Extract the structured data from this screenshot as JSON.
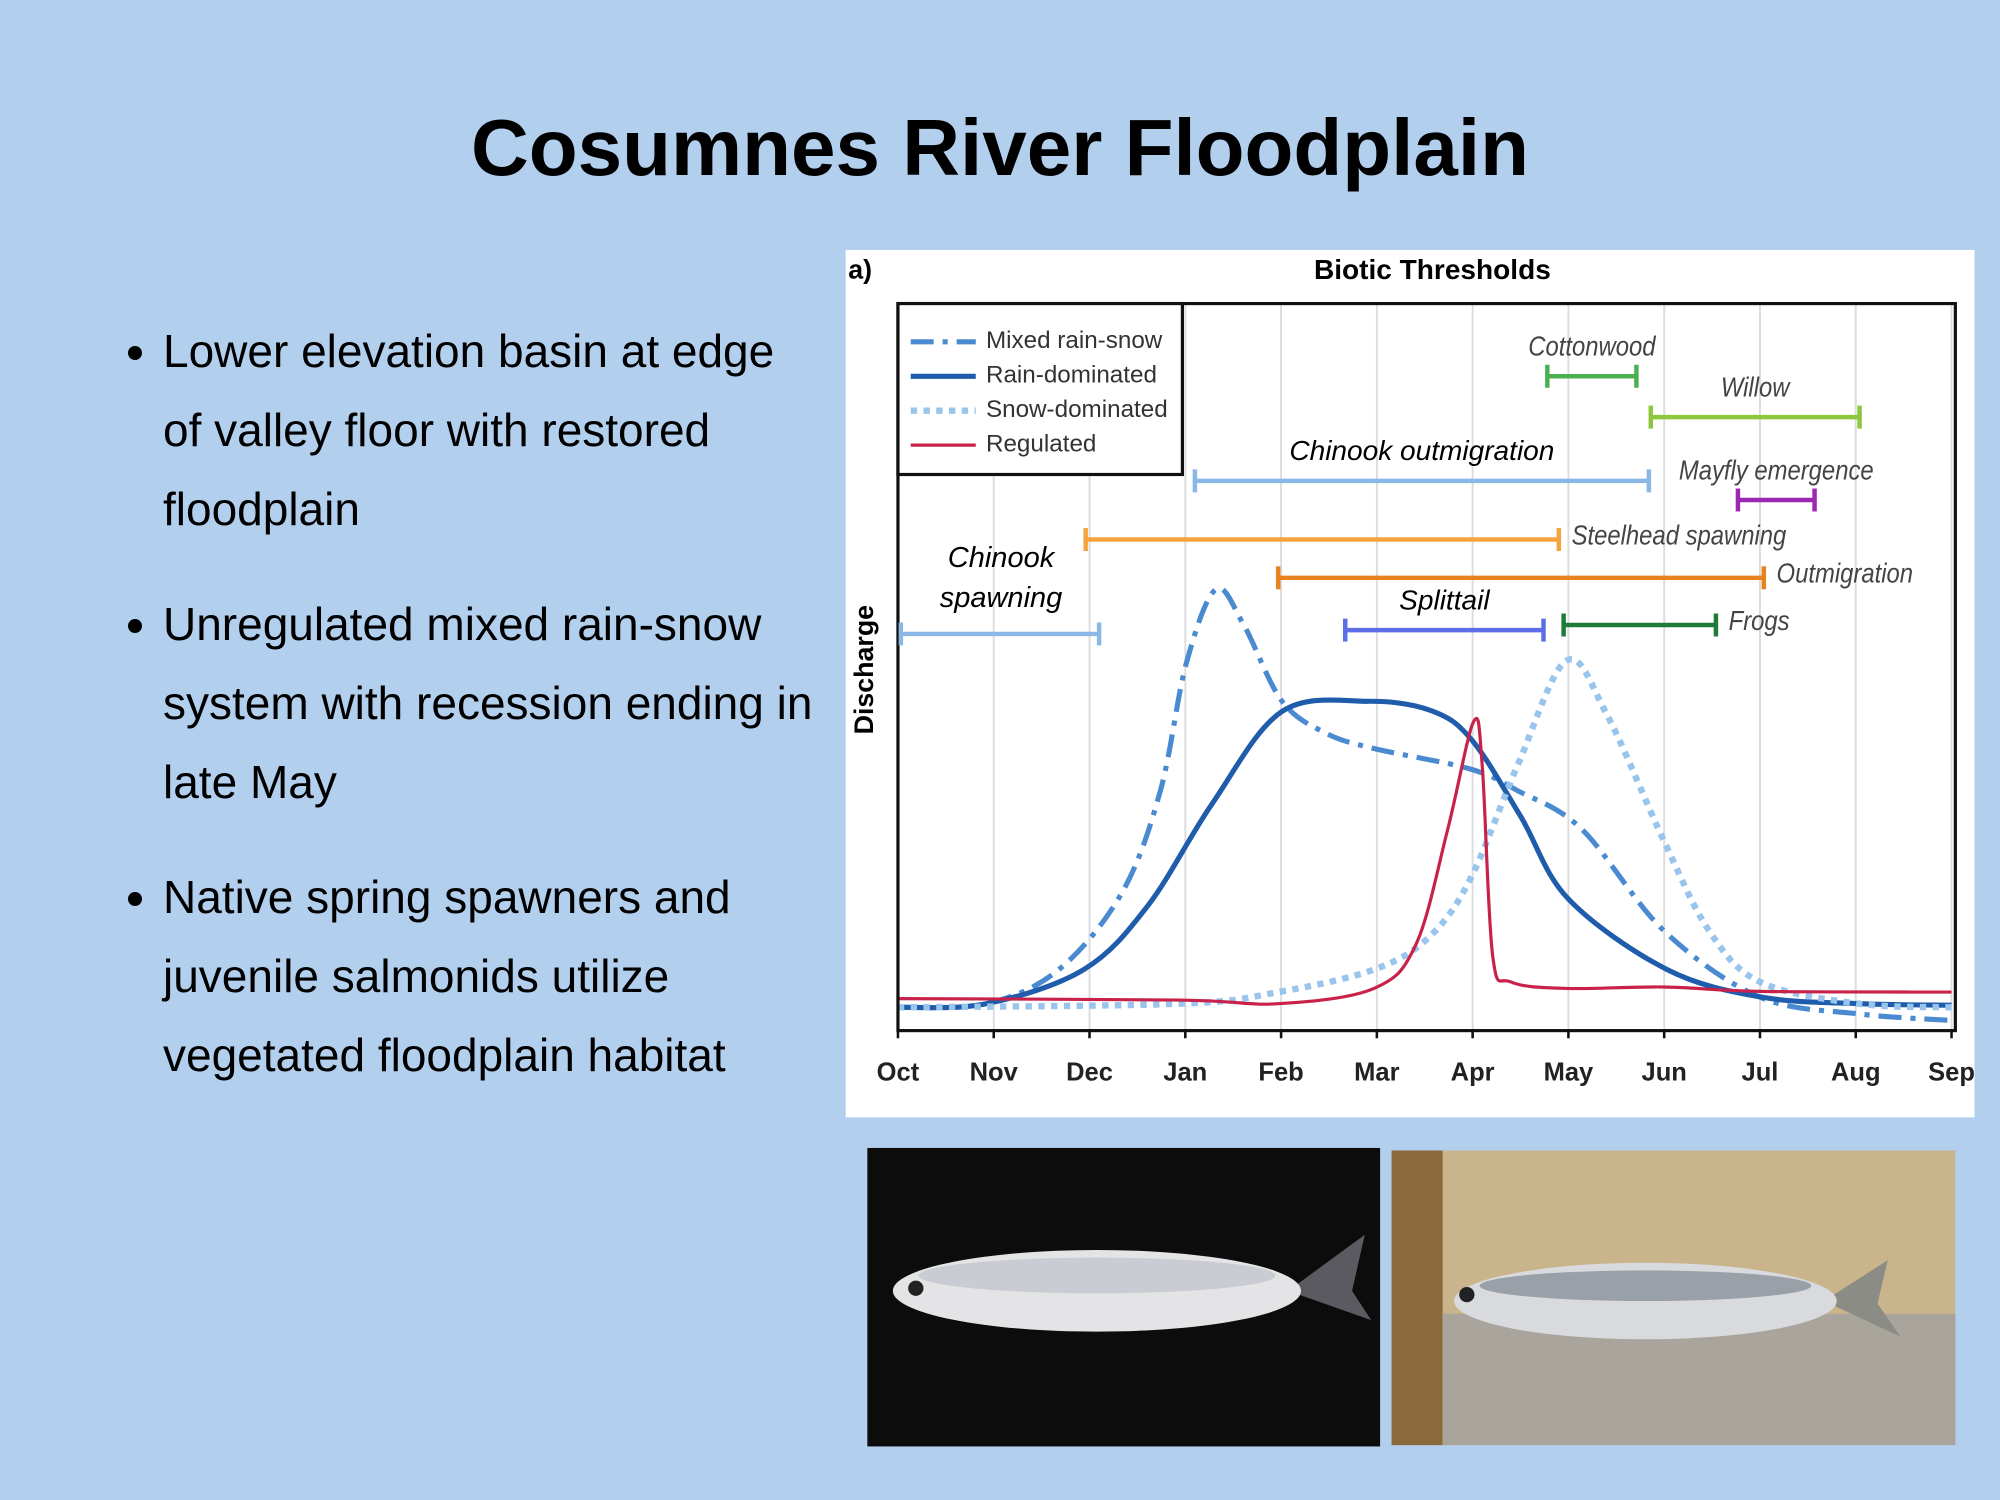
{
  "title": "Cosumnes River Floodplain",
  "bullets": [
    "Lower elevation basin at edge of valley floor with restored floodplain",
    "Unregulated mixed rain-snow system with recession ending in late May",
    "Native spring spawners and juvenile salmonids utilize vegetated floodplain habitat"
  ],
  "chart_data": {
    "type": "line",
    "panel_label": "a)",
    "title": "Biotic Thresholds",
    "y_label": "Discharge",
    "xlim": [
      0,
      11
    ],
    "xticks": [
      {
        "value": 0,
        "label": "Oct"
      },
      {
        "value": 1,
        "label": "Nov"
      },
      {
        "value": 2,
        "label": "Dec"
      },
      {
        "value": 3,
        "label": "Jan"
      },
      {
        "value": 4,
        "label": "Feb"
      },
      {
        "value": 5,
        "label": "Mar"
      },
      {
        "value": 6,
        "label": "Apr"
      },
      {
        "value": 7,
        "label": "May"
      },
      {
        "value": 8,
        "label": "Jun"
      },
      {
        "value": 9,
        "label": "Jul"
      },
      {
        "value": 10,
        "label": "Aug"
      },
      {
        "value": 11,
        "label": "Sep"
      }
    ],
    "ylim": [
      0,
      100
    ],
    "grid": true,
    "legend": "top-left",
    "series": [
      {
        "name": "Mixed rain-snow",
        "color": "#4a8ad0",
        "line_style": "dash-dot",
        "x": [
          0,
          0.92,
          1.68,
          2.34,
          2.74,
          3.01,
          3.32,
          3.61,
          4.01,
          4.47,
          4.97,
          5.97,
          6.47,
          7.14,
          8.0,
          9.0,
          10.03,
          11
        ],
        "values": [
          3.2,
          3.7,
          8.4,
          19.0,
          33.0,
          50.5,
          60.7,
          55.8,
          45.3,
          40.9,
          38.8,
          36.0,
          33.0,
          27.7,
          13.7,
          4.6,
          2.3,
          1.4
        ]
      },
      {
        "name": "Rain-dominated",
        "color": "#1f5cab",
        "line_style": "solid",
        "x": [
          0,
          0.92,
          1.94,
          2.61,
          3.28,
          4.01,
          4.91,
          5.57,
          5.99,
          6.5,
          7.0,
          8.03,
          9.02,
          10.05,
          11
        ],
        "values": [
          3.2,
          3.7,
          8.4,
          17.2,
          31.2,
          43.9,
          45.3,
          44.0,
          40.0,
          29.5,
          18.1,
          8.4,
          4.6,
          3.7,
          3.5
        ]
      },
      {
        "name": "Snow-dominated",
        "color": "#99c4ec",
        "line_style": "dotted",
        "x": [
          0,
          2.94,
          3.97,
          4.97,
          5.54,
          5.97,
          6.47,
          6.98,
          7.4,
          8.0,
          8.47,
          9.0,
          10.03,
          11
        ],
        "values": [
          3.2,
          3.7,
          5.3,
          8.4,
          12.8,
          20.7,
          36.5,
          50.9,
          43.5,
          26.0,
          13.7,
          6.7,
          3.7,
          3.2
        ]
      },
      {
        "name": "Regulated",
        "color": "#c9224a",
        "line_style": "thin",
        "x": [
          0,
          2.94,
          3.97,
          4.97,
          5.41,
          5.74,
          6.01,
          6.1,
          6.21,
          6.4,
          6.98,
          8.0,
          9.0,
          11
        ],
        "values": [
          4.4,
          4.2,
          3.7,
          5.8,
          11.9,
          27.7,
          42.5,
          36.5,
          10.2,
          6.7,
          5.8,
          6.0,
          5.4,
          5.3
        ]
      }
    ],
    "thresholds": [
      {
        "label": "Chinook spawning",
        "start": 0.03,
        "end": 2.1,
        "color": "#8ab8e6"
      },
      {
        "label": "Steelhead spawning",
        "start": 1.96,
        "end": 6.9,
        "color": "#f5a33c"
      },
      {
        "label": "Outmigration",
        "start": 3.97,
        "end": 9.04,
        "color": "#e8821e"
      },
      {
        "label": "Chinook outmigration",
        "start": 3.1,
        "end": 7.84,
        "color": "#8ab8e6"
      },
      {
        "label": "Splittail",
        "start": 4.67,
        "end": 6.74,
        "color": "#5b6ee8"
      },
      {
        "label": "Frogs",
        "start": 6.95,
        "end": 8.54,
        "color": "#1e7b3a"
      },
      {
        "label": "Cottonwood",
        "start": 6.78,
        "end": 7.71,
        "color": "#4caf50"
      },
      {
        "label": "Willow",
        "start": 7.86,
        "end": 10.04,
        "color": "#8dc63f"
      },
      {
        "label": "Mayfly emergence",
        "start": 8.77,
        "end": 9.57,
        "color": "#9c27b0"
      }
    ]
  }
}
